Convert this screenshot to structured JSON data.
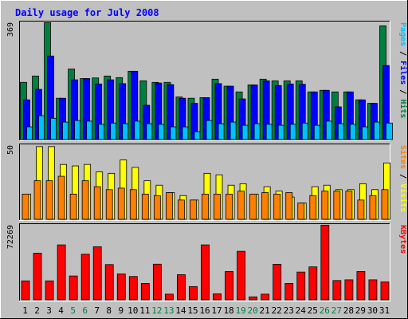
{
  "title": "Daily usage for July 2008",
  "colors": {
    "background": "#c0c0c0",
    "title": "#0000ff",
    "hits": "#008040",
    "files": "#0000ff",
    "pages": "#00c0ff",
    "visits": "#ffff00",
    "sites": "#ff8000",
    "kbytes": "#ff0000",
    "weekend_label": "#008040",
    "weekday_label": "#000000"
  },
  "chart_data": [
    {
      "type": "bar",
      "panel": "top",
      "max_label": "369",
      "ylim": [
        0,
        369
      ],
      "categories": [
        "1",
        "2",
        "3",
        "4",
        "5",
        "6",
        "7",
        "8",
        "9",
        "10",
        "11",
        "12",
        "13",
        "14",
        "15",
        "16",
        "17",
        "18",
        "19",
        "20",
        "21",
        "22",
        "23",
        "24",
        "25",
        "26",
        "27",
        "28",
        "29",
        "30",
        "31"
      ],
      "weekend_days": [
        "5",
        "6",
        "12",
        "13",
        "19",
        "20",
        "26",
        "27"
      ],
      "legend": [
        {
          "text": "Pages",
          "color": "#00c0ff"
        },
        {
          "text": " / ",
          "color": "#000000"
        },
        {
          "text": "Files",
          "color": "#0000ff"
        },
        {
          "text": " / ",
          "color": "#000000"
        },
        {
          "text": "Hits",
          "color": "#008040"
        }
      ],
      "series": [
        {
          "name": "Hits",
          "values": [
            180,
            200,
            368,
            130,
            222,
            192,
            194,
            200,
            195,
            215,
            185,
            180,
            180,
            134,
            130,
            132,
            190,
            168,
            150,
            172,
            190,
            185,
            185,
            185,
            150,
            155,
            150,
            150,
            125,
            114,
            358
          ]
        },
        {
          "name": "Files",
          "values": [
            125,
            158,
            263,
            130,
            188,
            192,
            175,
            188,
            176,
            215,
            108,
            178,
            173,
            130,
            114,
            132,
            176,
            168,
            128,
            172,
            185,
            170,
            175,
            174,
            150,
            155,
            103,
            150,
            125,
            114,
            233
          ]
        },
        {
          "name": "Pages",
          "values": [
            40,
            75,
            67,
            55,
            60,
            58,
            48,
            52,
            50,
            58,
            50,
            48,
            40,
            40,
            25,
            60,
            50,
            55,
            45,
            50,
            48,
            45,
            48,
            52,
            45,
            58,
            50,
            48,
            40,
            55,
            52
          ]
        }
      ]
    },
    {
      "type": "bar",
      "panel": "middle",
      "max_label": "50",
      "ylim": [
        0,
        50
      ],
      "categories": [
        "1",
        "2",
        "3",
        "4",
        "5",
        "6",
        "7",
        "8",
        "9",
        "10",
        "11",
        "12",
        "13",
        "14",
        "15",
        "16",
        "17",
        "18",
        "19",
        "20",
        "21",
        "22",
        "23",
        "24",
        "25",
        "26",
        "27",
        "28",
        "29",
        "30",
        "31"
      ],
      "legend": [
        {
          "text": "Sites",
          "color": "#ff8000"
        },
        {
          "text": " / ",
          "color": "#000000"
        },
        {
          "text": "Visits",
          "color": "#ffff00"
        }
      ],
      "series": [
        {
          "name": "Visits",
          "values": [
            17,
            49,
            49,
            37,
            36,
            37,
            32,
            31,
            40,
            35,
            26,
            23,
            18,
            16,
            13,
            31,
            30,
            23,
            24,
            17,
            22,
            19,
            15,
            11,
            22,
            23,
            20,
            20,
            24,
            20,
            38
          ]
        },
        {
          "name": "Sites",
          "values": [
            17,
            26,
            26,
            29,
            17,
            26,
            22,
            20,
            21,
            20,
            17,
            16,
            18,
            13,
            13,
            17,
            17,
            17,
            19,
            17,
            18,
            17,
            18,
            11,
            16,
            19,
            19,
            19,
            13,
            16,
            20
          ]
        }
      ]
    },
    {
      "type": "bar",
      "panel": "bottom",
      "max_label": "72269",
      "ylim": [
        0,
        72269
      ],
      "categories": [
        "1",
        "2",
        "3",
        "4",
        "5",
        "6",
        "7",
        "8",
        "9",
        "10",
        "11",
        "12",
        "13",
        "14",
        "15",
        "16",
        "17",
        "18",
        "19",
        "20",
        "21",
        "22",
        "23",
        "24",
        "25",
        "26",
        "27",
        "28",
        "29",
        "30",
        "31"
      ],
      "legend": [
        {
          "text": "KBytes",
          "color": "#ff0000"
        }
      ],
      "series": [
        {
          "name": "KBytes",
          "values": [
            18300,
            45000,
            18300,
            53000,
            23000,
            44000,
            51200,
            34000,
            25000,
            22500,
            15800,
            34400,
            5500,
            24300,
            12800,
            53000,
            5800,
            27300,
            46800,
            2900,
            5500,
            34300,
            15800,
            26800,
            31800,
            72000,
            18600,
            19300,
            27300,
            19300,
            17300
          ]
        }
      ]
    }
  ]
}
